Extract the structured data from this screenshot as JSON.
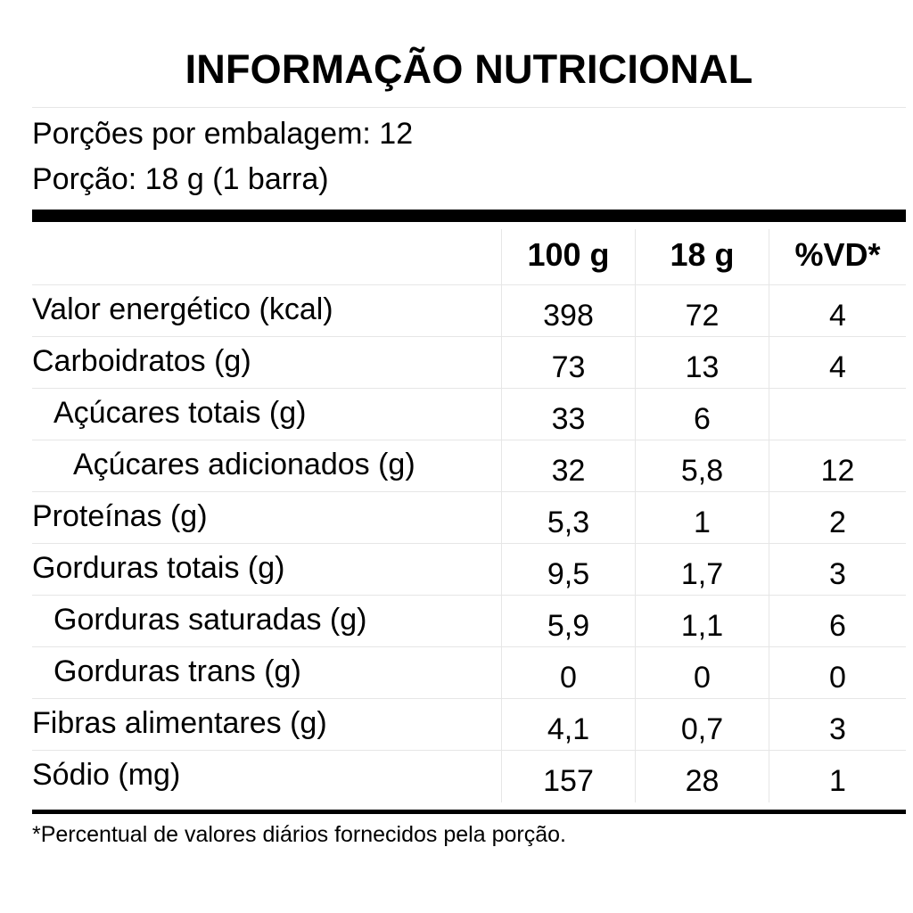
{
  "title": "INFORMAÇÃO NUTRICIONAL",
  "servings_per_package": "Porções por embalagem: 12",
  "serving_size": "Porção: 18 g (1 barra)",
  "columns": [
    "100 g",
    "18 g",
    "%VD*"
  ],
  "rows": [
    {
      "label": "Valor energético (kcal)",
      "per_100g": "398",
      "per_serving": "72",
      "dv": "4"
    },
    {
      "label": "Carboidratos (g)",
      "per_100g": "73",
      "per_serving": "13",
      "dv": "4"
    },
    {
      "label": "Açúcares totais (g)",
      "per_100g": "33",
      "per_serving": "6",
      "dv": ""
    },
    {
      "label": "Açúcares adicionados (g)",
      "per_100g": "32",
      "per_serving": "5,8",
      "dv": "12"
    },
    {
      "label": "Proteínas (g)",
      "per_100g": "5,3",
      "per_serving": "1",
      "dv": "2"
    },
    {
      "label": "Gorduras totais (g)",
      "per_100g": "9,5",
      "per_serving": "1,7",
      "dv": "3"
    },
    {
      "label": "Gorduras saturadas (g)",
      "per_100g": "5,9",
      "per_serving": "1,1",
      "dv": "6"
    },
    {
      "label": "Gorduras trans (g)",
      "per_100g": "0",
      "per_serving": "0",
      "dv": "0"
    },
    {
      "label": "Fibras alimentares (g)",
      "per_100g": "4,1",
      "per_serving": "0,7",
      "dv": "3"
    },
    {
      "label": "Sódio (mg)",
      "per_100g": "157",
      "per_serving": "28",
      "dv": "1"
    }
  ],
  "footnote": "*Percentual de valores diários fornecidos pela porção."
}
